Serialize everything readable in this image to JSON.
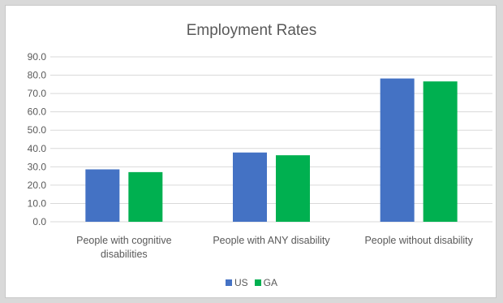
{
  "chart_data": {
    "type": "bar",
    "title": "Employment Rates",
    "xlabel": "",
    "ylabel": "",
    "categories": [
      [
        "People with cognitive",
        "disabilities"
      ],
      [
        "People with ANY disability"
      ],
      [
        "People without disability"
      ]
    ],
    "series": [
      {
        "name": "US",
        "color": "#4472c4",
        "values": [
          28.6,
          37.8,
          78.2
        ]
      },
      {
        "name": "GA",
        "color": "#00b050",
        "values": [
          27.1,
          36.3,
          76.6
        ]
      }
    ],
    "ylim": [
      0,
      90
    ],
    "yticks": [
      "0.0",
      "10.0",
      "20.0",
      "30.0",
      "40.0",
      "50.0",
      "60.0",
      "70.0",
      "80.0",
      "90.0"
    ],
    "grid": true,
    "legend_position": "bottom"
  }
}
